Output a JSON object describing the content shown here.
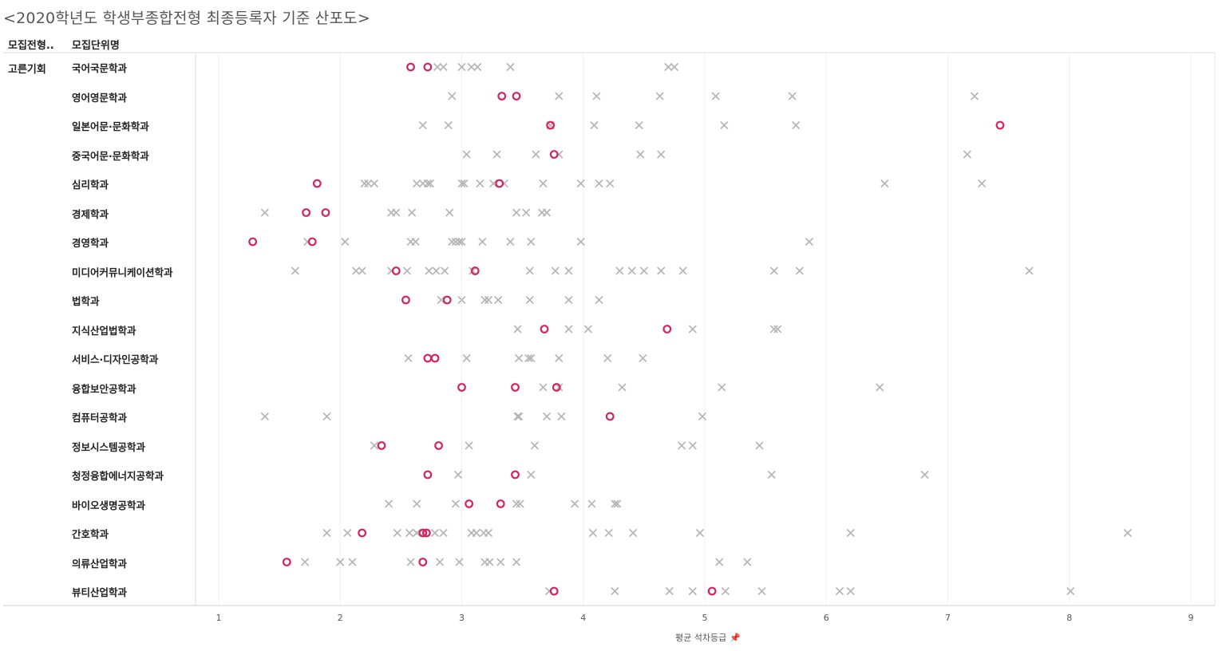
{
  "header": {
    "title": "<2020학년도 학생부종합전형 최종등록자 기준 산포도>",
    "col_type": "모집전형..",
    "col_unit": "모집단위명"
  },
  "chart_data": {
    "type": "scatter",
    "title": "<2020학년도 학생부종합전형 최종등록자 기준 산포도>",
    "xlabel": "평균 석차등급",
    "ylabel": "",
    "xlim": [
      0.8,
      9.2
    ],
    "xticks": [
      1,
      2,
      3,
      4,
      5,
      6,
      7,
      8,
      9
    ],
    "grid": true,
    "legend": "none",
    "group": "고른기회",
    "marker_styles": {
      "circle": {
        "shape": "circle",
        "color": "#d6245f"
      },
      "cross": {
        "shape": "x",
        "color": "#b5b5b5"
      }
    },
    "rows": [
      {
        "label": "국어국문학과",
        "circle": [
          2.58,
          2.72
        ],
        "cross": [
          2.8,
          2.85,
          3.0,
          3.08,
          3.13,
          3.4,
          4.7,
          4.75
        ]
      },
      {
        "label": "영어영문학과",
        "circle": [
          3.33,
          3.45
        ],
        "cross": [
          2.92,
          3.8,
          4.11,
          4.63,
          5.09,
          5.72,
          7.22
        ]
      },
      {
        "label": "일본어문·문화학과",
        "circle": [
          3.73,
          7.43
        ],
        "cross": [
          2.68,
          2.89,
          3.73,
          4.09,
          4.46,
          5.16,
          5.75
        ]
      },
      {
        "label": "중국어문·문화학과",
        "circle": [
          3.76
        ],
        "cross": [
          3.04,
          3.29,
          3.61,
          3.8,
          4.47,
          4.64,
          7.16
        ]
      },
      {
        "label": "심리학과",
        "circle": [
          1.81,
          3.31
        ],
        "cross": [
          2.2,
          2.23,
          2.28,
          2.63,
          2.68,
          2.72,
          2.74,
          3.0,
          3.02,
          3.15,
          3.26,
          3.35,
          3.67,
          3.98,
          4.13,
          4.22,
          6.48,
          7.28
        ]
      },
      {
        "label": "경제학과",
        "circle": [
          1.72,
          1.88
        ],
        "cross": [
          1.38,
          2.42,
          2.46,
          2.59,
          2.9,
          3.45,
          3.53,
          3.66,
          3.7
        ]
      },
      {
        "label": "경영학과",
        "circle": [
          1.28,
          1.77
        ],
        "cross": [
          1.73,
          2.04,
          2.58,
          2.62,
          2.92,
          2.95,
          2.98,
          3.0,
          3.17,
          3.4,
          3.57,
          3.98,
          5.86
        ]
      },
      {
        "label": "미디어커뮤니케이션학과",
        "circle": [
          2.46,
          3.11
        ],
        "cross": [
          1.63,
          2.13,
          2.18,
          2.42,
          2.55,
          2.73,
          2.79,
          2.86,
          3.09,
          3.56,
          3.77,
          3.88,
          4.3,
          4.4,
          4.5,
          4.64,
          4.82,
          5.57,
          5.78,
          7.67
        ]
      },
      {
        "label": "법학과",
        "circle": [
          2.54,
          2.88
        ],
        "cross": [
          2.83,
          3.0,
          3.19,
          3.22,
          3.3,
          3.56,
          3.88,
          4.13
        ]
      },
      {
        "label": "지식산업법학과",
        "circle": [
          3.68,
          4.69
        ],
        "cross": [
          3.46,
          3.88,
          4.04,
          4.9,
          5.57,
          5.6
        ]
      },
      {
        "label": "서비스·디자인공학과",
        "circle": [
          2.72,
          2.78
        ],
        "cross": [
          2.56,
          3.04,
          3.47,
          3.55,
          3.57,
          3.8,
          4.2,
          4.49
        ]
      },
      {
        "label": "융합보안공학과",
        "circle": [
          3.0,
          3.44,
          3.78
        ],
        "cross": [
          3.67,
          3.8,
          4.32,
          5.14,
          6.44
        ]
      },
      {
        "label": "컴퓨터공학과",
        "circle": [
          4.22
        ],
        "cross": [
          1.38,
          1.89,
          3.46,
          3.47,
          3.7,
          3.82,
          4.98
        ]
      },
      {
        "label": "정보시스템공학과",
        "circle": [
          2.34,
          2.81
        ],
        "cross": [
          2.28,
          3.06,
          3.6,
          4.81,
          4.9,
          5.45
        ]
      },
      {
        "label": "청정융합에너지공학과",
        "circle": [
          2.72,
          3.44
        ],
        "cross": [
          2.97,
          3.57,
          5.55,
          6.81
        ]
      },
      {
        "label": "바이오생명공학과",
        "circle": [
          3.06,
          3.32
        ],
        "cross": [
          2.4,
          2.63,
          2.95,
          3.45,
          3.48,
          3.93,
          4.07,
          4.26,
          4.28
        ]
      },
      {
        "label": "간호학과",
        "circle": [
          2.18,
          2.68,
          2.71
        ],
        "cross": [
          1.89,
          2.06,
          2.47,
          2.57,
          2.63,
          2.69,
          2.78,
          2.85,
          3.08,
          3.12,
          3.18,
          3.22,
          4.08,
          4.21,
          4.41,
          4.96,
          6.2,
          8.48
        ]
      },
      {
        "label": "의류산업학과",
        "circle": [
          1.56,
          2.68
        ],
        "cross": [
          1.71,
          2.0,
          2.1,
          2.58,
          2.82,
          2.98,
          3.19,
          3.23,
          3.32,
          3.45,
          5.12,
          5.35
        ]
      },
      {
        "label": "뷰티산업학과",
        "circle": [
          3.76,
          5.06
        ],
        "cross": [
          3.72,
          4.26,
          4.71,
          4.9,
          5.17,
          5.47,
          6.11,
          6.2,
          8.01
        ]
      }
    ]
  }
}
